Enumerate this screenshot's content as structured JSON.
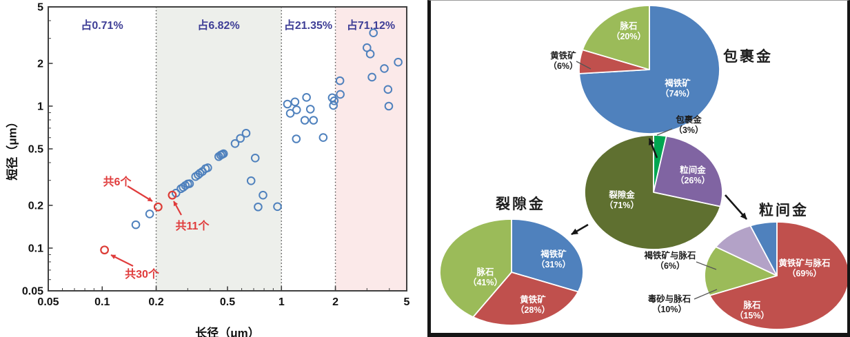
{
  "chart_data": [
    {
      "type": "scatter",
      "xlabel": "长径（μm）",
      "ylabel": "短径（μm）",
      "x_scale": "log",
      "y_scale": "log",
      "xlim": [
        0.05,
        5
      ],
      "ylim": [
        0.05,
        5
      ],
      "tick_labels": [
        "0.05",
        "0.1",
        "0.2",
        "0.5",
        "1",
        "2",
        "5"
      ],
      "tick_values": [
        0.05,
        0.1,
        0.2,
        0.5,
        1,
        2,
        5
      ],
      "region_boundaries": [
        0.2,
        1,
        2
      ],
      "regions": [
        {
          "label": "占0.71%",
          "from": 0.05,
          "to": 0.2,
          "fill": "#ffffff"
        },
        {
          "label": "占6.82%",
          "from": 0.2,
          "to": 1,
          "fill": "#edefeb"
        },
        {
          "label": "占21.35%",
          "from": 1,
          "to": 2,
          "fill": "#ffffff"
        },
        {
          "label": "占71.12%",
          "from": 2,
          "to": 5,
          "fill": "#fbe9e9"
        }
      ],
      "blue_points": [
        [
          0.154,
          0.146
        ],
        [
          0.184,
          0.174
        ],
        [
          0.258,
          0.244
        ],
        [
          0.275,
          0.262
        ],
        [
          0.283,
          0.268
        ],
        [
          0.291,
          0.276
        ],
        [
          0.3,
          0.283
        ],
        [
          0.307,
          0.284
        ],
        [
          0.332,
          0.319
        ],
        [
          0.343,
          0.328
        ],
        [
          0.351,
          0.337
        ],
        [
          0.362,
          0.346
        ],
        [
          0.377,
          0.363
        ],
        [
          0.388,
          0.368
        ],
        [
          0.447,
          0.441
        ],
        [
          0.458,
          0.451
        ],
        [
          0.467,
          0.457
        ],
        [
          0.475,
          0.462
        ],
        [
          0.551,
          0.545
        ],
        [
          0.59,
          0.593
        ],
        [
          0.635,
          0.644
        ],
        [
          0.714,
          0.431
        ],
        [
          0.677,
          0.298
        ],
        [
          0.789,
          0.236
        ],
        [
          0.741,
          0.195
        ],
        [
          0.95,
          0.196
        ],
        [
          1.08,
          1.034
        ],
        [
          1.19,
          1.071
        ],
        [
          1.215,
          0.941
        ],
        [
          1.12,
          0.89
        ],
        [
          1.38,
          1.152
        ],
        [
          1.45,
          0.952
        ],
        [
          1.35,
          0.795
        ],
        [
          1.51,
          0.795
        ],
        [
          1.21,
          0.588
        ],
        [
          1.71,
          0.601
        ],
        [
          1.95,
          1.01
        ],
        [
          1.97,
          1.09
        ],
        [
          1.92,
          1.146
        ],
        [
          2.12,
          1.51
        ],
        [
          2.13,
          1.21
        ],
        [
          3.0,
          2.58
        ],
        [
          3.13,
          2.33
        ],
        [
          3.26,
          3.28
        ],
        [
          3.2,
          1.6
        ],
        [
          3.75,
          1.84
        ],
        [
          3.93,
          1.31
        ],
        [
          3.97,
          1.0
        ],
        [
          4.48,
          2.04
        ]
      ],
      "red_points": [
        {
          "x": 0.103,
          "y": 0.097,
          "label": "共30个"
        },
        {
          "x": 0.205,
          "y": 0.195,
          "label": "共6个"
        },
        {
          "x": 0.246,
          "y": 0.236,
          "label": "共11个"
        }
      ],
      "colors": {
        "points_blue": "#4f81bd",
        "points_red": "#dc3c36",
        "region_label": "#3e3e96",
        "annotation_red": "#e03c3c"
      }
    },
    {
      "type": "pie",
      "title": "包裹金",
      "slices": [
        {
          "name": "褐铁矿",
          "pct": 74,
          "pct_text": "（74%）",
          "color": "#4f81bd"
        },
        {
          "name": "黄铁矿",
          "pct": 6,
          "pct_text": "（6%）",
          "color": "#c0504d"
        },
        {
          "name": "脉石",
          "pct": 20,
          "pct_text": "（20%）",
          "color": "#9bbb59"
        }
      ]
    },
    {
      "type": "pie",
      "title": "",
      "slices": [
        {
          "name": "包裹金",
          "pct": 3,
          "pct_text": "（3%）",
          "color": "#00a651"
        },
        {
          "name": "粒间金",
          "pct": 26,
          "pct_text": "（26%）",
          "color": "#8064a2"
        },
        {
          "name": "裂隙金",
          "pct": 71,
          "pct_text": "（71%）",
          "color": "#5f7030"
        }
      ]
    },
    {
      "type": "pie",
      "title": "裂隙金",
      "slices": [
        {
          "name": "褐铁矿",
          "pct": 31,
          "pct_text": "（31%）",
          "color": "#4f81bd"
        },
        {
          "name": "黄铁矿",
          "pct": 28,
          "pct_text": "（28%）",
          "color": "#c0504d"
        },
        {
          "name": "脉石",
          "pct": 41,
          "pct_text": "（41%）",
          "color": "#9bbb59"
        }
      ]
    },
    {
      "type": "pie",
      "title": "粒间金",
      "slices": [
        {
          "name": "黄铁矿与脉石",
          "pct": 69,
          "pct_text": "（69%）",
          "color": "#c0504d"
        },
        {
          "name": "脉石",
          "pct": 15,
          "pct_text": "（15%）",
          "color": "#9bbb59"
        },
        {
          "name": "毒砂与脉石",
          "pct": 10,
          "pct_text": "（10%）",
          "color": "#b3a2c7"
        },
        {
          "name": "褐铁矿与脉石",
          "pct": 6,
          "pct_text": "（6%）",
          "color": "#4f81bd"
        }
      ]
    }
  ]
}
